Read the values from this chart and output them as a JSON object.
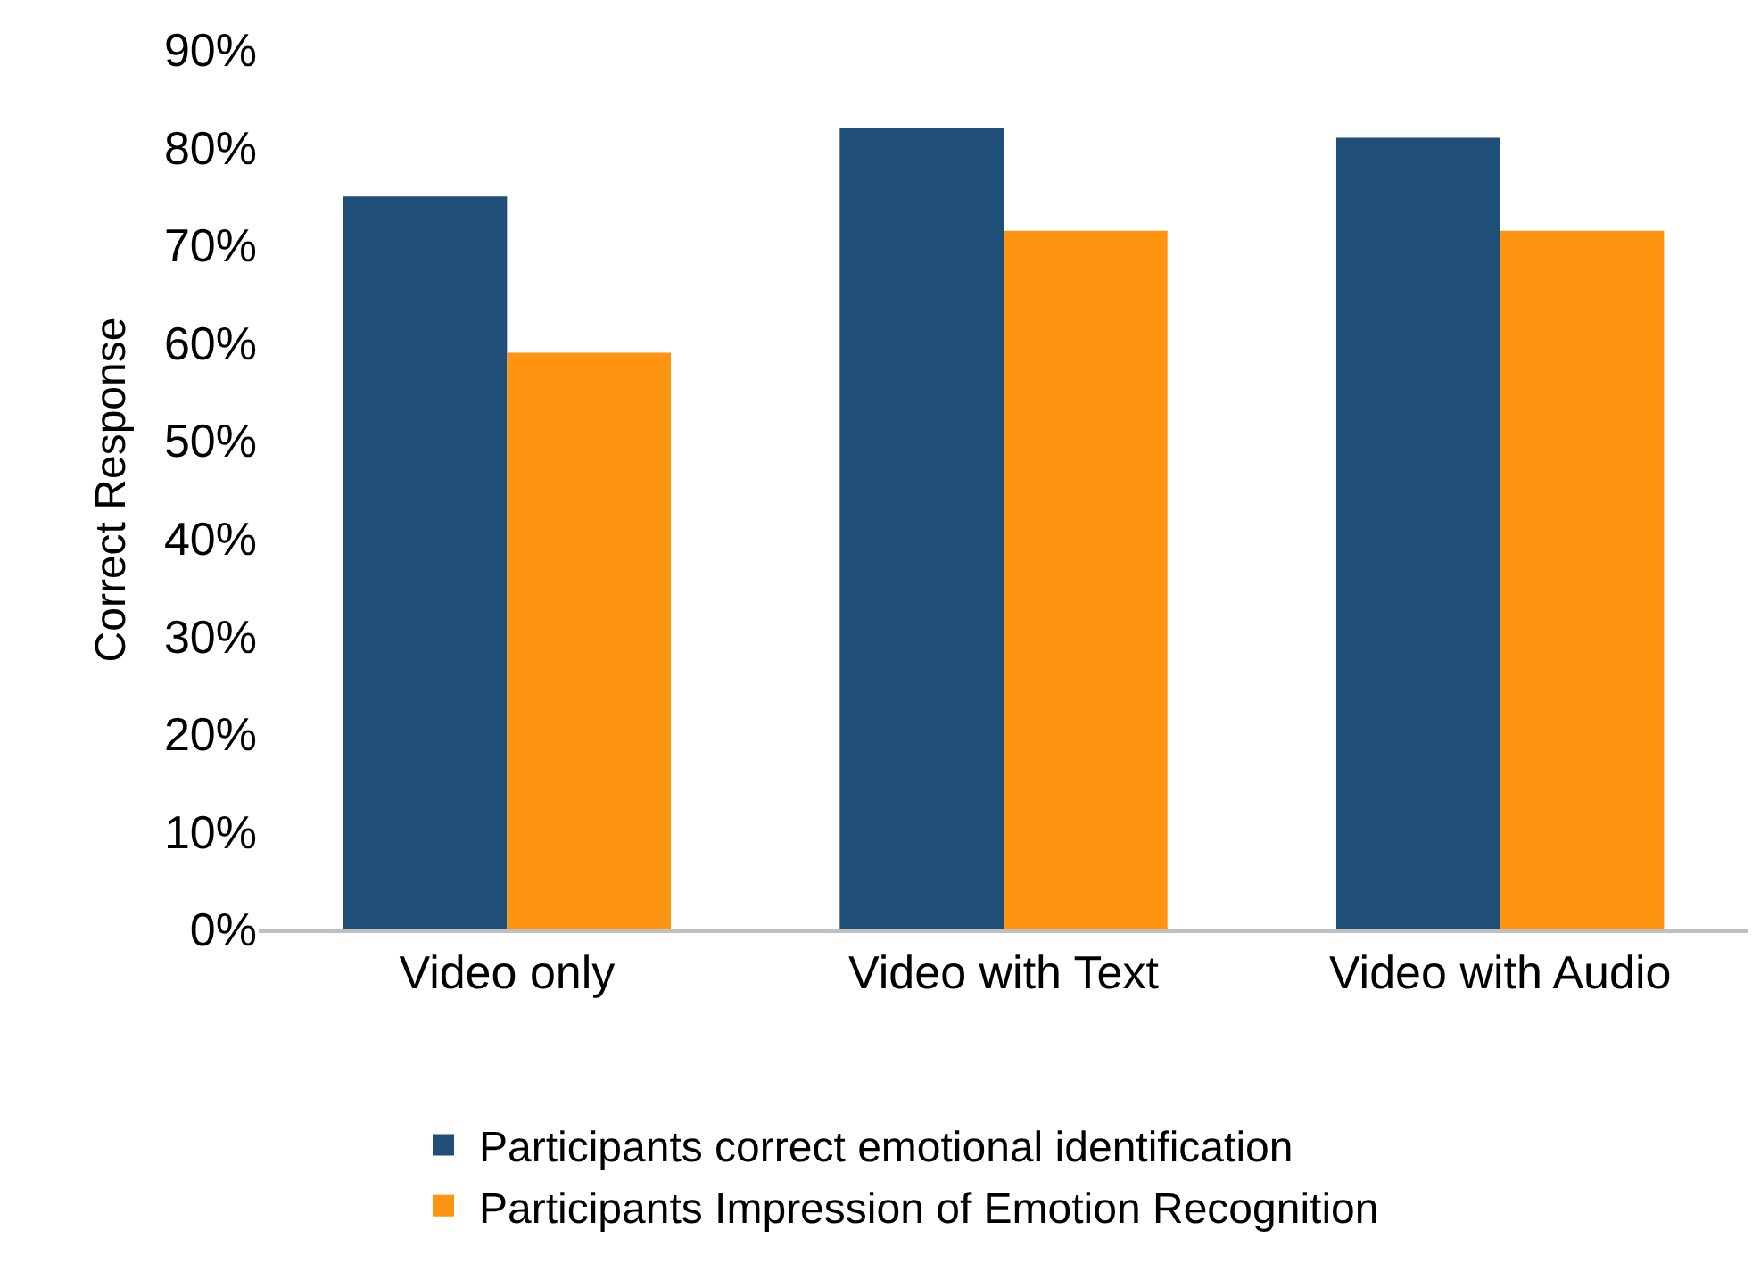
{
  "chart_data": {
    "type": "bar",
    "ylabel": "Correct Response",
    "categories": [
      "Video only",
      "Video with Text",
      "Video with Audio"
    ],
    "series": [
      {
        "name": "Participants correct emotional identification",
        "color": "#1f4e79",
        "values": [
          75,
          82,
          81
        ]
      },
      {
        "name": "Participants Impression of Emotion Recognition",
        "color": "#ff9410",
        "values": [
          59,
          71.5,
          71.5
        ]
      }
    ],
    "ylim": [
      0,
      90
    ],
    "yticks": [
      {
        "value": 0,
        "label": "0%"
      },
      {
        "value": 10,
        "label": "10%"
      },
      {
        "value": 20,
        "label": "20%"
      },
      {
        "value": 30,
        "label": "30%"
      },
      {
        "value": 40,
        "label": "40%"
      },
      {
        "value": 50,
        "label": "50%"
      },
      {
        "value": 60,
        "label": "60%"
      },
      {
        "value": 70,
        "label": "70%"
      },
      {
        "value": 80,
        "label": "80%"
      },
      {
        "value": 90,
        "label": "90%"
      }
    ],
    "grid": false,
    "legend": "bottom"
  }
}
